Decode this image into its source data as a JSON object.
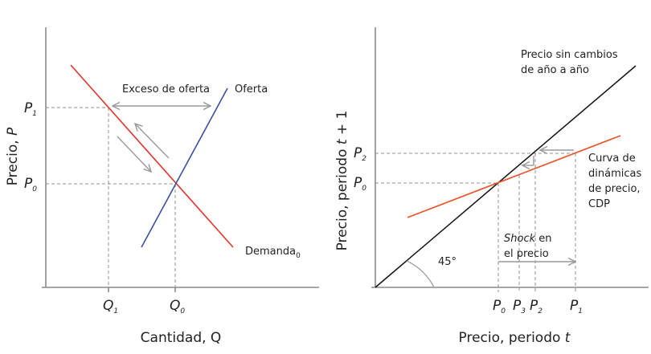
{
  "left_panel": {
    "y_axis_label": "Precio, ",
    "y_axis_var": "P",
    "x_axis_label": "Cantidad, Q",
    "excess_label": "Exceso de oferta",
    "supply_label": "Oferta",
    "demand_label": "Demanda",
    "demand_sub": "0",
    "y_ticks": [
      {
        "base": "P",
        "sub": "1"
      },
      {
        "base": "P",
        "sub": "0"
      }
    ],
    "x_ticks": [
      {
        "base": "Q",
        "sub": "1"
      },
      {
        "base": "Q",
        "sub": "0"
      }
    ],
    "colors": {
      "demand": "#e8312a",
      "supply": "#3a4fa0",
      "arrows": "#9a9a9a"
    }
  },
  "right_panel": {
    "y_axis_label": "Precio, periodo ",
    "y_axis_var": "t",
    "y_axis_suffix": " + 1",
    "x_axis_label": "Precio, periodo ",
    "x_axis_var": "t",
    "line45_label_1": "Precio sin cambios",
    "line45_label_2": "de año a año",
    "cdp_label": [
      "Curva de",
      "dinámicas",
      "de precio,",
      "CDP"
    ],
    "shock_italic": "Shock",
    "shock_rest": " en",
    "shock_line2": "el precio",
    "angle_label": "45°",
    "y_ticks": [
      {
        "base": "P",
        "sub": "2"
      },
      {
        "base": "P",
        "sub": "0"
      }
    ],
    "x_ticks": [
      {
        "base": "P",
        "sub": "0"
      },
      {
        "base": "P",
        "sub": "3"
      },
      {
        "base": "P",
        "sub": "2"
      },
      {
        "base": "P",
        "sub": "1"
      }
    ],
    "colors": {
      "line45": "#111111",
      "cdp": "#e8562a"
    }
  }
}
